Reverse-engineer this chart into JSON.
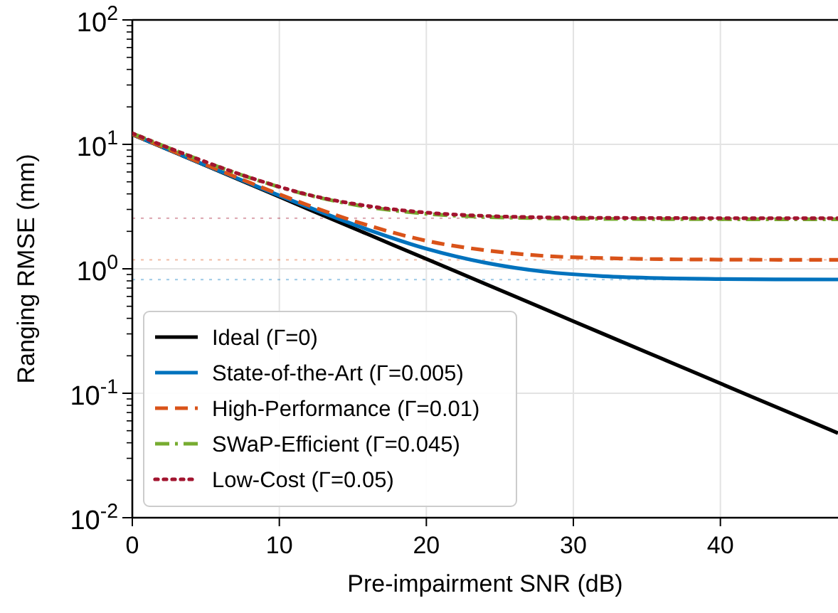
{
  "chart_data": {
    "type": "line",
    "xlabel": "Pre-impairment SNR (dB)",
    "ylabel": "Ranging RMSE (mm)",
    "x": [
      0,
      4,
      8,
      12,
      16,
      20,
      24,
      28,
      32,
      36,
      40,
      44,
      48
    ],
    "xlim": [
      0,
      48
    ],
    "xticks": [
      0,
      10,
      20,
      30,
      40
    ],
    "ylim": [
      0.01,
      100
    ],
    "yticks": [
      {
        "value": 0.01,
        "label": "10$^{-2}$"
      },
      {
        "value": 0.1,
        "label": "10$^{-1}$"
      },
      {
        "value": 1,
        "label": "10$^{0}$"
      },
      {
        "value": 10,
        "label": "10$^{1}$"
      },
      {
        "value": 100,
        "label": "10$^{2}$"
      }
    ],
    "log": "y",
    "grid": true,
    "legend": "bottom left",
    "marker": "none",
    "series": [
      {
        "name": "Ideal (Γ=0)",
        "color": "#000000",
        "line_style": "solid",
        "values": [
          12,
          7.57,
          4.78,
          3.01,
          1.9,
          1.2,
          0.757,
          0.478,
          0.301,
          0.19,
          0.12,
          0.0757,
          0.0478
        ]
      },
      {
        "name": "State-of-the-Art (Γ=0.005)",
        "color": "#0072bd",
        "line_style": "solid",
        "values": [
          12.03,
          7.61,
          4.84,
          3.12,
          2.07,
          1.45,
          1.12,
          0.949,
          0.873,
          0.841,
          0.828,
          0.823,
          0.821
        ]
      },
      {
        "name": "High-Performance (Γ=0.01)",
        "color": "#d95319",
        "line_style": "dashed",
        "values": [
          12.06,
          7.66,
          4.92,
          3.23,
          2.24,
          1.68,
          1.41,
          1.27,
          1.22,
          1.195,
          1.186,
          1.182,
          1.181
        ]
      },
      {
        "name": "SWaP-Efficient (Γ=0.045)",
        "color": "#77ac30",
        "line_style": "dashdot",
        "values": [
          12.26,
          7.97,
          5.39,
          3.91,
          3.14,
          2.77,
          2.61,
          2.545,
          2.518,
          2.507,
          2.503,
          2.501,
          2.5
        ]
      },
      {
        "name": "Low-Cost (Γ=0.05)",
        "color": "#a2142f",
        "line_style": "dotted",
        "values": [
          12.27,
          7.99,
          5.41,
          3.93,
          3.2,
          2.83,
          2.66,
          2.59,
          2.568,
          2.557,
          2.553,
          2.551,
          2.55
        ]
      }
    ],
    "ref_lines": [
      {
        "axis": "y",
        "value": 0.82,
        "label": null,
        "color": "#0072bd",
        "line_style": "dotted"
      },
      {
        "axis": "y",
        "value": 1.18,
        "label": null,
        "color": "#d95319",
        "line_style": "dotted"
      },
      {
        "axis": "y",
        "value": 2.55,
        "label": null,
        "color": "#a2142f",
        "line_style": "dotted"
      }
    ]
  }
}
